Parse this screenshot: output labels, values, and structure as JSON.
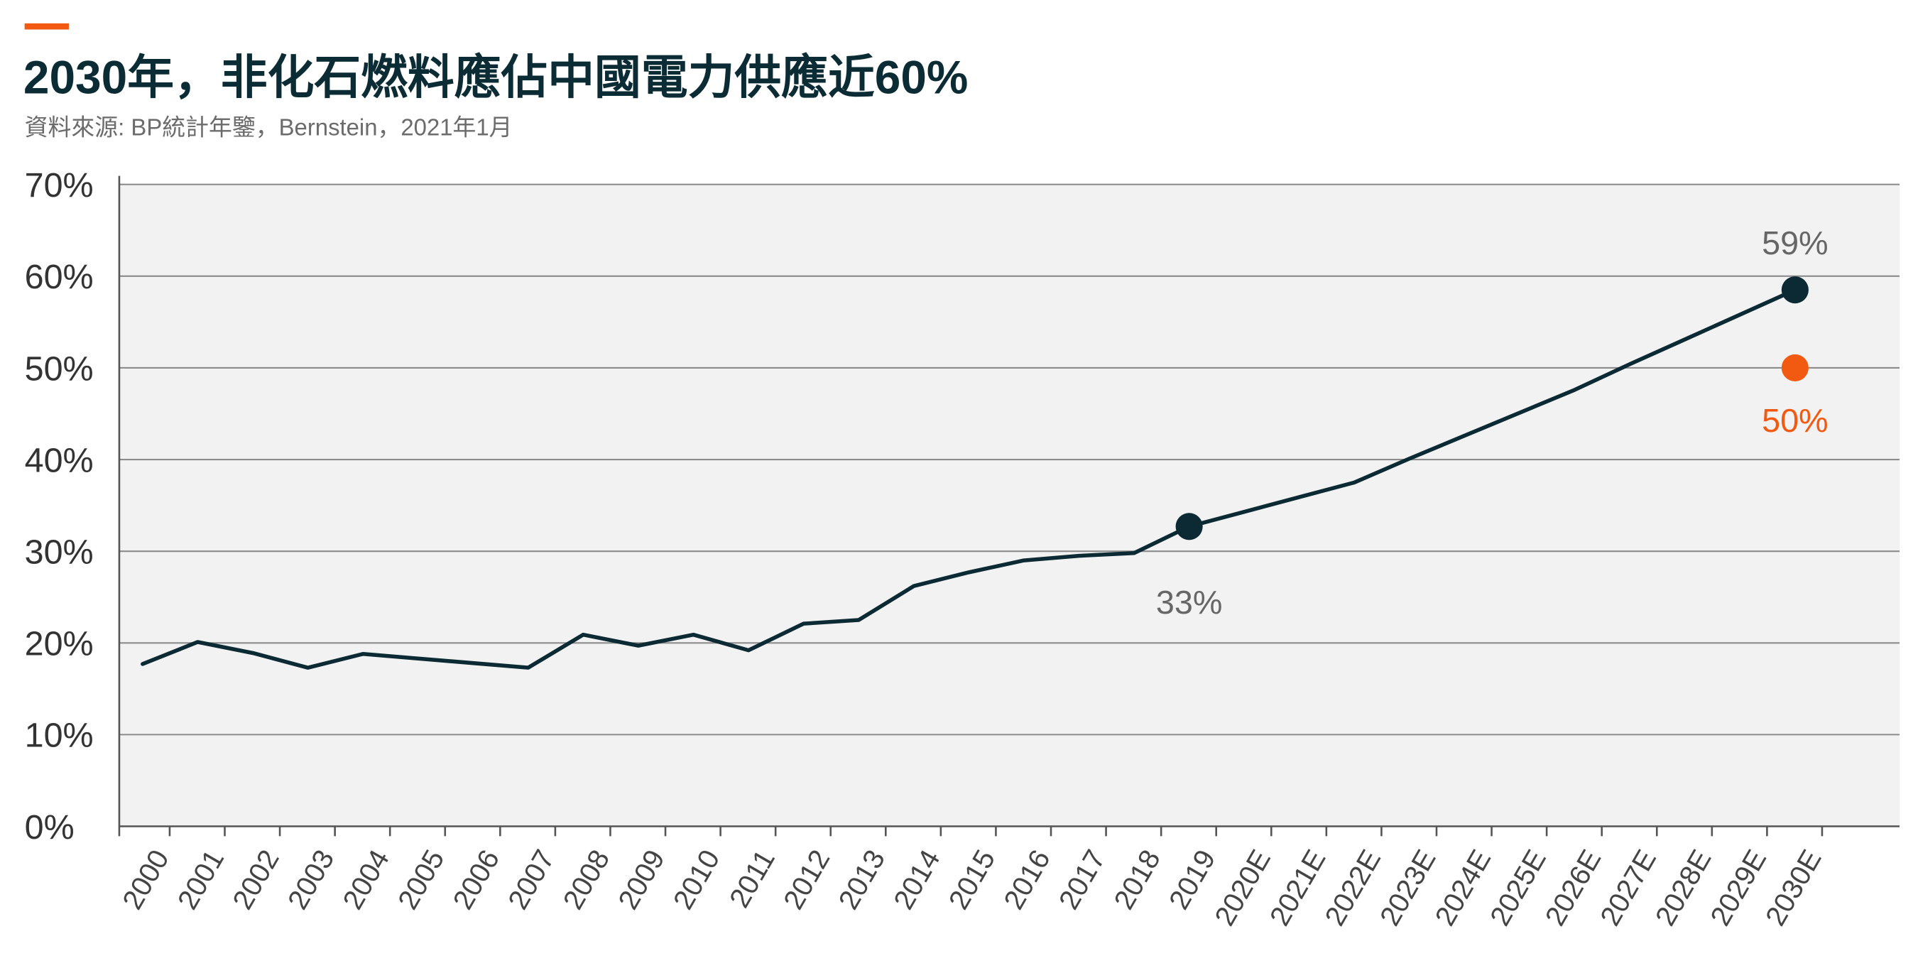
{
  "colors": {
    "accent": "#f25a12",
    "title": "#0c2c35",
    "source_text": "#6b6b6b",
    "plot_bg": "#f2f2f2",
    "grid": "#8c8c8c",
    "axis": "#555555",
    "annotation": "#666666"
  },
  "chart_data": {
    "type": "line",
    "title": "2030年，非化石燃料應佔中國電力供應近60%",
    "source": "資料來源: BP統計年鑒，Bernstein，2021年1月",
    "categories": [
      "2000",
      "2001",
      "2002",
      "2003",
      "2004",
      "2005",
      "2006",
      "2007",
      "2008",
      "2009",
      "2010",
      "2011",
      "2012",
      "2013",
      "2014",
      "2015",
      "2016",
      "2017",
      "2018",
      "2019",
      "2020E",
      "2021E",
      "2022E",
      "2023E",
      "2024E",
      "2025E",
      "2026E",
      "2027E",
      "2028E",
      "2029E",
      "2030E"
    ],
    "series": [
      {
        "values": [
          17.7,
          20.1,
          18.9,
          17.3,
          18.8,
          18.3,
          17.8,
          17.3,
          20.9,
          19.7,
          20.9,
          19.2,
          22.1,
          22.5,
          26.2,
          27.7,
          29.0,
          29.5,
          29.8,
          32.7,
          34.3,
          35.9,
          37.5,
          40.1,
          42.6,
          45.1,
          47.6,
          50.4,
          53.1,
          55.8,
          58.5
        ],
        "color": "#0b2a33",
        "marker_indices": [
          19,
          30
        ]
      },
      {
        "values": [
          null,
          null,
          null,
          null,
          null,
          null,
          null,
          null,
          null,
          null,
          null,
          null,
          null,
          null,
          null,
          null,
          null,
          null,
          null,
          null,
          null,
          null,
          null,
          null,
          null,
          null,
          null,
          null,
          null,
          null,
          50
        ],
        "color": "#f25a12",
        "marker_indices": [
          30
        ]
      }
    ],
    "ylim": [
      0,
      70
    ],
    "yticks": [
      0,
      10,
      20,
      30,
      40,
      50,
      60,
      70
    ],
    "ytick_labels": [
      "0%",
      "10%",
      "20%",
      "30%",
      "40%",
      "50%",
      "60%",
      "70%"
    ],
    "grid": true,
    "annotations": [
      {
        "index": 19,
        "series": 0,
        "text": "33%"
      },
      {
        "index": 30,
        "series": 0,
        "text": "59%"
      },
      {
        "index": 30,
        "series": 1,
        "text": "50%"
      }
    ]
  }
}
